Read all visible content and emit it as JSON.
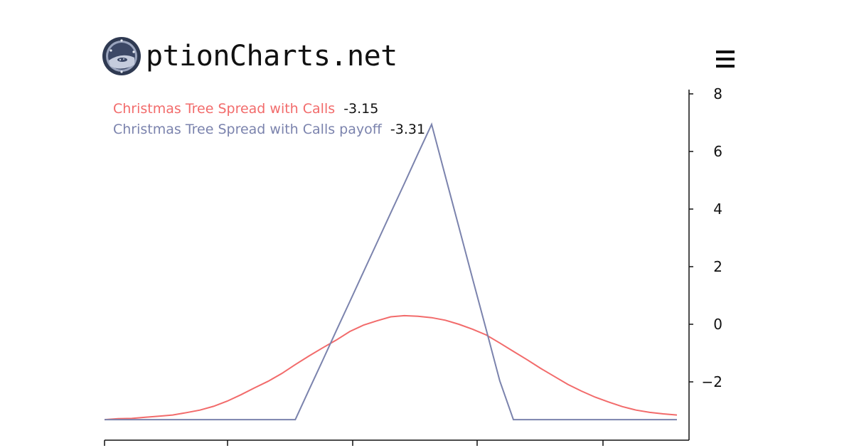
{
  "header": {
    "brand_text": "ptionCharts.net",
    "logo_icon": "asteroid-porthole-logo",
    "menu_icon": "hamburger-menu-icon"
  },
  "colors": {
    "profit_line": "#f26b6b",
    "payoff_line": "#7b83ad",
    "legend_value": "#111111",
    "axis": "#111111"
  },
  "chart_data": {
    "type": "line",
    "y_axis_position": "right",
    "ylim": [
      -3.6,
      8
    ],
    "yticks": [
      -2,
      0,
      2,
      4,
      6,
      8
    ],
    "ytick_labels": [
      "−2",
      "0",
      "2",
      "4",
      "6",
      "8"
    ],
    "x_tick_count": 5,
    "legend": [
      {
        "label": "Christmas Tree Spread with Calls",
        "value": "-3.15"
      },
      {
        "label": "Christmas Tree Spread with Calls payoff",
        "value": "-3.31"
      }
    ],
    "series": [
      {
        "values": [
          -3.31,
          -3.28,
          -3.27,
          -3.23,
          -3.19,
          -3.15,
          -3.07,
          -2.98,
          -2.85,
          -2.67,
          -2.45,
          -2.21,
          -1.98,
          -1.71,
          -1.4,
          -1.1,
          -0.82,
          -0.55,
          -0.25,
          -0.03,
          0.12,
          0.26,
          0.3,
          0.28,
          0.23,
          0.14,
          0.0,
          -0.17,
          -0.37,
          -0.65,
          -0.94,
          -1.23,
          -1.53,
          -1.81,
          -2.09,
          -2.32,
          -2.53,
          -2.7,
          -2.86,
          -2.98,
          -3.06,
          -3.11,
          -3.15
        ]
      },
      {
        "values": [
          -3.31,
          -3.31,
          -3.31,
          -3.31,
          -3.31,
          -3.31,
          -3.31,
          -3.31,
          -3.31,
          -3.31,
          -3.31,
          -3.31,
          -3.31,
          -3.31,
          -3.31,
          -2.28,
          -1.26,
          -0.23,
          0.79,
          1.82,
          2.84,
          3.87,
          4.89,
          5.92,
          6.94,
          5.15,
          3.38,
          1.59,
          -0.18,
          -1.96,
          -3.31,
          -3.31,
          -3.31,
          -3.31,
          -3.31,
          -3.31,
          -3.31,
          -3.31,
          -3.31,
          -3.31,
          -3.31,
          -3.31,
          -3.31
        ]
      }
    ]
  }
}
